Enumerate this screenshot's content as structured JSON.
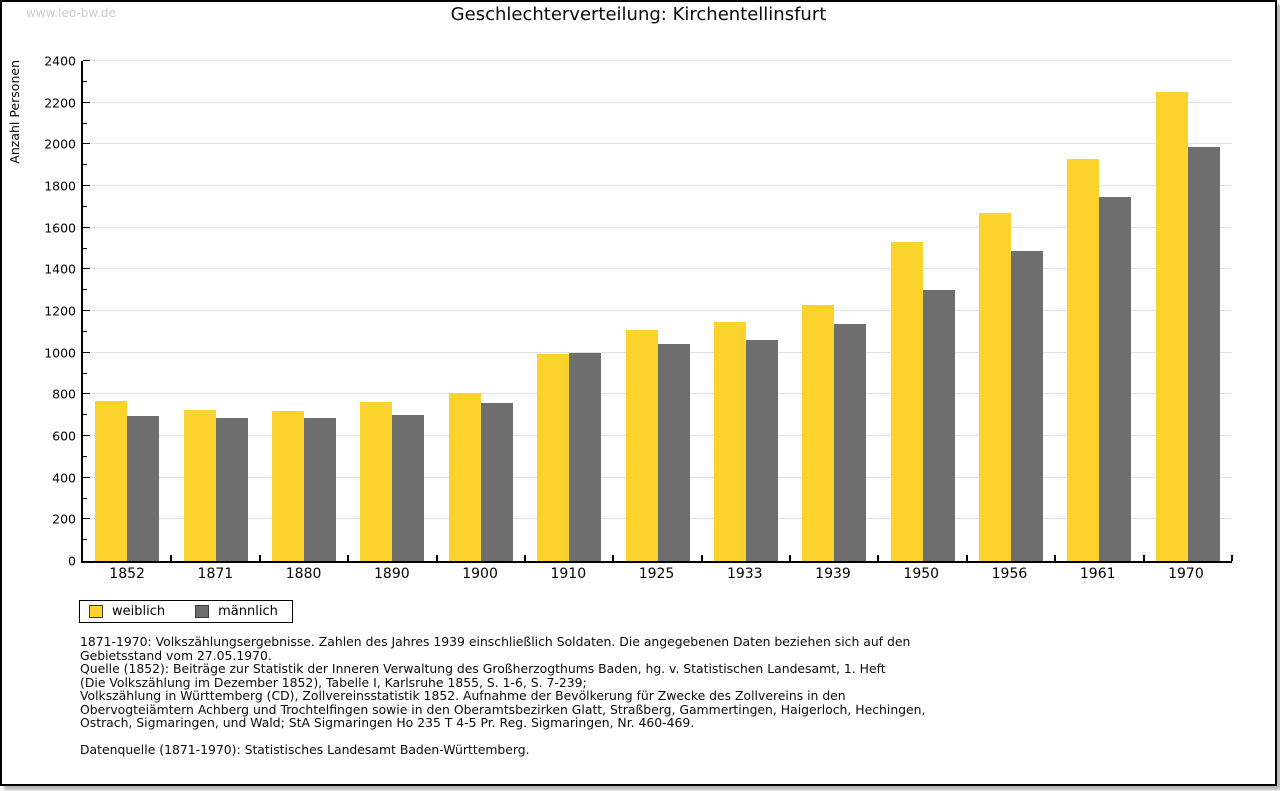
{
  "watermark": "www.leo-bw.de",
  "title": "Geschlechterverteilung: Kirchentellinsfurt",
  "chart_data": {
    "type": "bar",
    "title": "Geschlechterverteilung: Kirchentellinsfurt",
    "xlabel": "",
    "ylabel": "Anzahl Personen",
    "ylim": [
      0,
      2400
    ],
    "ytick_step": 200,
    "ytick_minor_step": 100,
    "grid": "horizontal",
    "legend_position": "bottom-left",
    "categories": [
      "1852",
      "1871",
      "1880",
      "1890",
      "1900",
      "1910",
      "1925",
      "1933",
      "1939",
      "1950",
      "1956",
      "1961",
      "1970"
    ],
    "series": [
      {
        "name": "weiblich",
        "color": "#FCD32D",
        "values": [
          770,
          725,
          720,
          765,
          805,
          995,
          1110,
          1145,
          1230,
          1530,
          1670,
          1930,
          2250
        ]
      },
      {
        "name": "männlich",
        "color": "#6E6E6E",
        "values": [
          695,
          685,
          685,
          700,
          760,
          1000,
          1040,
          1060,
          1140,
          1300,
          1490,
          1745,
          1985
        ]
      }
    ]
  },
  "footnote": {
    "lines": [
      "1871-1970: Volkszählungsergebnisse. Zahlen des Jahres 1939 einschließlich Soldaten. Die angegebenen Daten beziehen sich auf den",
      "Gebietsstand vom 27.05.1970.",
      "Quelle (1852): Beiträge zur Statistik der Inneren Verwaltung des Großherzogthums Baden, hg. v. Statistischen Landesamt, 1. Heft",
      "(Die Volkszählung im Dezember 1852), Tabelle I, Karlsruhe 1855, S. 1-6, S. 7-239;",
      "Volkszählung in Württemberg (CD), Zollvereinsstatistik 1852. Aufnahme der Bevölkerung für Zwecke des Zollvereins in den",
      "Obervogteiämtern Achberg und Trochtelfingen sowie in den Oberamtsbezirken Glatt, Straßberg, Gammertingen, Haigerloch, Hechingen,",
      "Ostrach, Sigmaringen, und Wald; StA Sigmaringen Ho 235 T 4-5 Pr. Reg. Sigmaringen, Nr. 460-469."
    ],
    "datenquelle": "Datenquelle (1871-1970): Statistisches Landesamt Baden-Württemberg."
  }
}
